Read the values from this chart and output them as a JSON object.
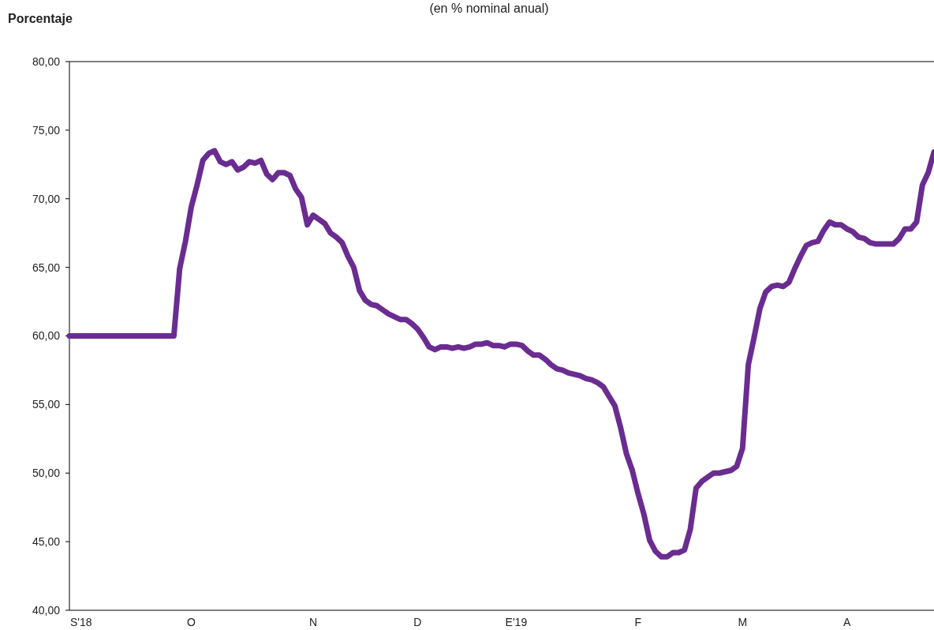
{
  "chart_data": {
    "type": "line",
    "title": "(en % nominal anual)",
    "ylabel": "Porcentaje",
    "categories": [
      null,
      null,
      "S'18",
      null,
      null,
      null,
      null,
      null,
      null,
      null,
      null,
      null,
      null,
      null,
      null,
      null,
      null,
      null,
      null,
      null,
      null,
      "O",
      null,
      null,
      null,
      null,
      null,
      null,
      null,
      null,
      null,
      null,
      null,
      null,
      null,
      null,
      null,
      null,
      null,
      null,
      null,
      null,
      "N",
      null,
      null,
      null,
      null,
      null,
      null,
      null,
      null,
      null,
      null,
      null,
      null,
      null,
      null,
      null,
      null,
      null,
      "D",
      null,
      null,
      null,
      null,
      null,
      null,
      null,
      null,
      null,
      null,
      null,
      null,
      null,
      null,
      null,
      null,
      "E'19",
      null,
      null,
      null,
      null,
      null,
      null,
      null,
      null,
      null,
      null,
      null,
      null,
      null,
      null,
      null,
      null,
      null,
      null,
      null,
      null,
      "F",
      null,
      null,
      null,
      null,
      null,
      null,
      null,
      null,
      null,
      null,
      null,
      null,
      null,
      null,
      null,
      null,
      null,
      "M",
      null,
      null,
      null,
      null,
      null,
      null,
      null,
      null,
      null,
      null,
      null,
      null,
      null,
      null,
      null,
      null,
      null,
      "A",
      null,
      null,
      null,
      null,
      null,
      null,
      null,
      null,
      null,
      null,
      null,
      null,
      null,
      null,
      null
    ],
    "ylim": [
      40,
      80
    ],
    "yticks": [
      {
        "value": 40,
        "label": "40,00"
      },
      {
        "value": 45,
        "label": "45,00"
      },
      {
        "value": 50,
        "label": "50,00"
      },
      {
        "value": 55,
        "label": "55,00"
      },
      {
        "value": 60,
        "label": "60,00"
      },
      {
        "value": 65,
        "label": "65,00"
      },
      {
        "value": 70,
        "label": "70,00"
      },
      {
        "value": 75,
        "label": "75,00"
      },
      {
        "value": 80,
        "label": "80,00"
      }
    ],
    "grid": false,
    "marker": "none",
    "line_style": "solid",
    "series": [
      {
        "color": "#6a2c91",
        "values": [
          60.0,
          60.0,
          60.0,
          60.0,
          60.0,
          60.0,
          60.0,
          60.0,
          60.0,
          60.0,
          60.0,
          60.0,
          60.0,
          60.0,
          60.0,
          60.0,
          60.0,
          60.0,
          60.0,
          64.9,
          66.9,
          69.4,
          71.0,
          72.8,
          73.3,
          73.5,
          72.7,
          72.5,
          72.7,
          72.1,
          72.3,
          72.7,
          72.6,
          72.8,
          71.8,
          71.4,
          71.9,
          71.9,
          71.7,
          70.7,
          70.1,
          68.1,
          68.8,
          68.5,
          68.2,
          67.5,
          67.2,
          66.8,
          65.8,
          65.0,
          63.3,
          62.6,
          62.3,
          62.2,
          61.9,
          61.6,
          61.4,
          61.2,
          61.2,
          60.9,
          60.5,
          59.9,
          59.2,
          59.0,
          59.2,
          59.2,
          59.1,
          59.2,
          59.1,
          59.2,
          59.4,
          59.4,
          59.5,
          59.3,
          59.3,
          59.2,
          59.4,
          59.4,
          59.3,
          58.9,
          58.6,
          58.6,
          58.3,
          57.9,
          57.6,
          57.5,
          57.3,
          57.2,
          57.1,
          56.9,
          56.8,
          56.6,
          56.3,
          55.6,
          54.9,
          53.3,
          51.4,
          50.2,
          48.5,
          47.0,
          45.1,
          44.3,
          43.9,
          43.9,
          44.2,
          44.2,
          44.4,
          45.9,
          48.9,
          49.4,
          49.7,
          50.0,
          50.0,
          50.1,
          50.2,
          50.5,
          51.8,
          57.9,
          59.9,
          62.0,
          63.2,
          63.6,
          63.7,
          63.6,
          63.9,
          64.9,
          65.8,
          66.6,
          66.8,
          66.9,
          67.7,
          68.3,
          68.1,
          68.1,
          67.8,
          67.6,
          67.2,
          67.1,
          66.8,
          66.7,
          66.7,
          66.7,
          66.7,
          67.1,
          67.8,
          67.8,
          68.3,
          71.0,
          71.9,
          73.4
        ]
      }
    ]
  }
}
